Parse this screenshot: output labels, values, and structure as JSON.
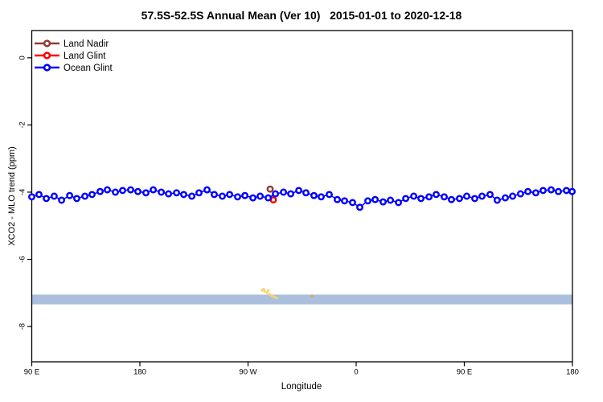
{
  "chart_data": {
    "type": "line",
    "title": "57.5S-52.5S Annual Mean (Ver 10)   2015-01-01 to 2020-12-18",
    "xlabel": "Longitude",
    "ylabel": "XCO2 - MLO trend (ppm)",
    "xlim": [
      90,
      540
    ],
    "ylim": [
      -9.05,
      0.81
    ],
    "grid": false,
    "x_ticks": [
      {
        "pos": 90,
        "label": "90 E"
      },
      {
        "pos": 180,
        "label": "180"
      },
      {
        "pos": 270,
        "label": "90 W"
      },
      {
        "pos": 360,
        "label": "0"
      },
      {
        "pos": 450,
        "label": "90 E"
      },
      {
        "pos": 540,
        "label": "180"
      }
    ],
    "y_ticks": [
      {
        "pos": 0,
        "label": "0"
      },
      {
        "pos": -2,
        "label": "-2"
      },
      {
        "pos": -4,
        "label": "-4"
      },
      {
        "pos": -6,
        "label": "-6"
      },
      {
        "pos": -8,
        "label": "-8"
      }
    ],
    "legend": {
      "position": "top-left",
      "entries": [
        {
          "name": "Land Nadir",
          "color": "#963c32"
        },
        {
          "name": "Land Glint",
          "color": "#ff0000"
        },
        {
          "name": "Ocean Glint",
          "color": "#0000ff"
        }
      ]
    },
    "band": {
      "from": -7.05,
      "to": -7.34,
      "color": "#a9bfdc"
    },
    "series": [
      {
        "name": "Land Nadir",
        "color": "#963c32",
        "line": false,
        "points": [
          [
            288.4,
            -3.91
          ]
        ]
      },
      {
        "name": "Land Glint",
        "color": "#ff0000",
        "line": false,
        "points": [
          [
            291.1,
            -4.23
          ]
        ]
      },
      {
        "name": "Ocean Glint",
        "color": "#0000ff",
        "line": true,
        "points": [
          [
            90.0,
            -4.14
          ],
          [
            96.0,
            -4.07
          ],
          [
            102.1,
            -4.19
          ],
          [
            108.7,
            -4.12
          ],
          [
            114.8,
            -4.24
          ],
          [
            121.5,
            -4.1
          ],
          [
            127.5,
            -4.19
          ],
          [
            134.2,
            -4.12
          ],
          [
            140.2,
            -4.07
          ],
          [
            146.9,
            -3.98
          ],
          [
            152.9,
            -3.93
          ],
          [
            159.6,
            -4.0
          ],
          [
            165.6,
            -3.95
          ],
          [
            172.3,
            -3.93
          ],
          [
            178.3,
            -3.98
          ],
          [
            185.0,
            -4.02
          ],
          [
            191.1,
            -3.93
          ],
          [
            197.8,
            -4.0
          ],
          [
            203.8,
            -4.05
          ],
          [
            210.5,
            -4.02
          ],
          [
            216.5,
            -4.07
          ],
          [
            223.2,
            -4.12
          ],
          [
            229.2,
            -4.02
          ],
          [
            235.9,
            -3.93
          ],
          [
            241.9,
            -4.07
          ],
          [
            248.6,
            -4.12
          ],
          [
            254.7,
            -4.07
          ],
          [
            261.3,
            -4.14
          ],
          [
            267.4,
            -4.1
          ],
          [
            274.1,
            -4.17
          ],
          [
            280.1,
            -4.12
          ],
          [
            286.8,
            -4.17
          ],
          [
            292.8,
            -4.05
          ],
          [
            299.5,
            -4.0
          ],
          [
            305.5,
            -4.05
          ],
          [
            312.2,
            -3.95
          ],
          [
            318.2,
            -4.02
          ],
          [
            324.9,
            -4.1
          ],
          [
            330.9,
            -4.14
          ],
          [
            337.6,
            -4.07
          ],
          [
            344.3,
            -4.22
          ],
          [
            350.3,
            -4.26
          ],
          [
            357.0,
            -4.31
          ],
          [
            363.0,
            -4.45
          ],
          [
            369.7,
            -4.26
          ],
          [
            375.8,
            -4.22
          ],
          [
            382.4,
            -4.29
          ],
          [
            388.5,
            -4.24
          ],
          [
            395.2,
            -4.31
          ],
          [
            401.2,
            -4.19
          ],
          [
            407.9,
            -4.12
          ],
          [
            413.9,
            -4.19
          ],
          [
            420.6,
            -4.14
          ],
          [
            426.6,
            -4.07
          ],
          [
            433.3,
            -4.14
          ],
          [
            439.3,
            -4.22
          ],
          [
            446.0,
            -4.19
          ],
          [
            452.0,
            -4.12
          ],
          [
            458.7,
            -4.19
          ],
          [
            464.7,
            -4.12
          ],
          [
            471.4,
            -4.07
          ],
          [
            477.4,
            -4.24
          ],
          [
            484.1,
            -4.17
          ],
          [
            490.2,
            -4.12
          ],
          [
            496.8,
            -4.05
          ],
          [
            502.9,
            -3.98
          ],
          [
            509.5,
            -4.02
          ],
          [
            515.6,
            -3.95
          ],
          [
            522.3,
            -3.93
          ],
          [
            528.3,
            -3.98
          ],
          [
            535.0,
            -3.95
          ],
          [
            539.7,
            -3.98
          ]
        ]
      }
    ],
    "scatter_overlays": [
      {
        "name": "terrain-dots-yellow",
        "color": "#f6d472",
        "points": [
          [
            281.8,
            -6.92
          ],
          [
            283.0,
            -6.89
          ],
          [
            283.8,
            -6.95
          ],
          [
            285.8,
            -6.99
          ],
          [
            286.8,
            -6.93
          ],
          [
            287.8,
            -7.04
          ],
          [
            289.8,
            -7.08
          ],
          [
            291.8,
            -7.12
          ],
          [
            293.8,
            -7.15
          ]
        ]
      },
      {
        "name": "terrain-dot-orange",
        "color": "#f0a04a",
        "points": [
          [
            323.2,
            -7.09
          ]
        ]
      }
    ]
  }
}
